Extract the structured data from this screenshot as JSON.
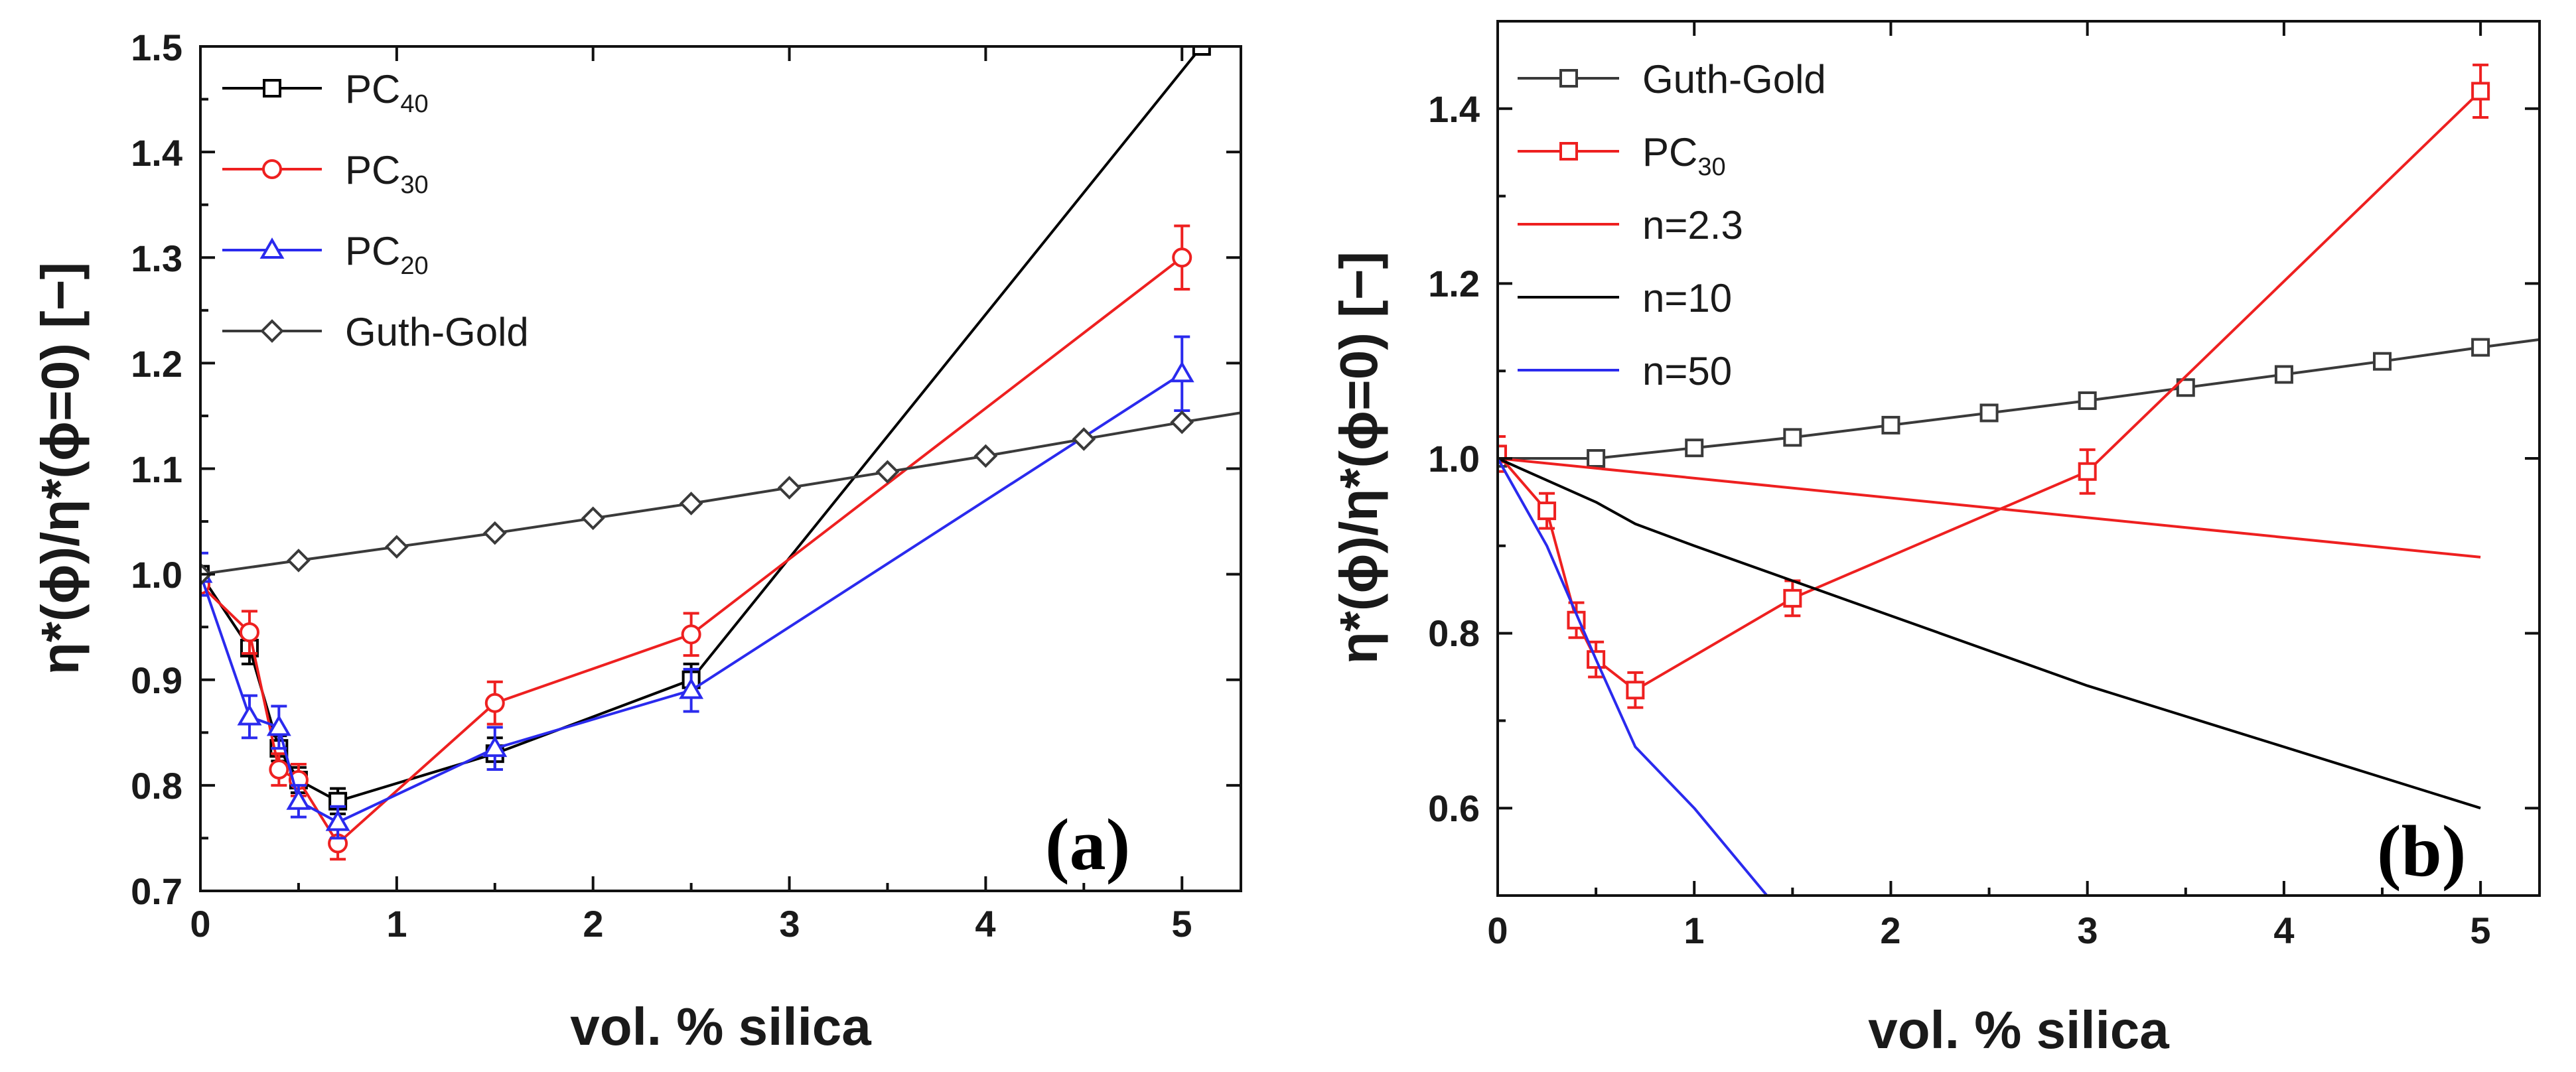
{
  "chart_data": [
    {
      "panel": "(a)",
      "type": "line",
      "xlabel": "vol. % silica",
      "ylabel": "η*(ϕ)/η*(ϕ=0) [−]",
      "xlim": [
        0,
        5.3
      ],
      "ylim": [
        0.7,
        1.5
      ],
      "xticks": [
        "0",
        "1",
        "2",
        "3",
        "4",
        "5"
      ],
      "yticks": [
        "0.7",
        "0.8",
        "0.9",
        "1.0",
        "1.1",
        "1.2",
        "1.3",
        "1.4",
        "1.5"
      ],
      "legend_position": "top-left",
      "series": [
        {
          "name": "PC",
          "sub": "40",
          "color": "#000000",
          "marker": "square",
          "x": [
            0,
            0.25,
            0.4,
            0.5,
            0.7,
            1.5,
            2.5,
            5.1
          ],
          "y": [
            1.0,
            0.93,
            0.835,
            0.805,
            0.785,
            0.83,
            0.9,
            1.5
          ],
          "err": [
            0,
            0.015,
            0.012,
            0.012,
            0.012,
            0.015,
            0.015,
            0
          ]
        },
        {
          "name": "PC",
          "sub": "30",
          "color": "#ee2020",
          "marker": "circle",
          "x": [
            0,
            0.25,
            0.4,
            0.5,
            0.7,
            1.5,
            2.5,
            5
          ],
          "y": [
            0.99,
            0.945,
            0.815,
            0.805,
            0.745,
            0.878,
            0.943,
            1.3
          ],
          "err": [
            0,
            0.02,
            0.015,
            0.015,
            0.015,
            0.02,
            0.02,
            0.03
          ]
        },
        {
          "name": "PC",
          "sub": "20",
          "color": "#2a2aee",
          "marker": "triangle",
          "x": [
            0,
            0.25,
            0.4,
            0.5,
            0.7,
            1.5,
            2.5,
            5
          ],
          "y": [
            1.0,
            0.865,
            0.855,
            0.785,
            0.765,
            0.835,
            0.89,
            1.19
          ],
          "err": [
            0.02,
            0.02,
            0.02,
            0.015,
            0.015,
            0.02,
            0.02,
            0.035
          ]
        },
        {
          "name": "Guth-Gold",
          "sub": "",
          "color": "#3a3a3a",
          "marker": "diamond",
          "x": [
            0,
            0.5,
            1,
            1.5,
            2,
            2.5,
            3,
            3.5,
            4,
            4.5,
            5,
            5.3
          ],
          "y": [
            1.0,
            1.013,
            1.026,
            1.039,
            1.053,
            1.067,
            1.082,
            1.097,
            1.112,
            1.128,
            1.144,
            1.153
          ],
          "marker_x_max": 5.05,
          "err": []
        }
      ]
    },
    {
      "panel": "(b)",
      "type": "line",
      "xlabel": "vol. % silica",
      "ylabel": "η*(ϕ)/η*(ϕ=0) [−]",
      "xlim": [
        0,
        5.3
      ],
      "ylim": [
        0.5,
        1.5
      ],
      "xticks": [
        "0",
        "1",
        "2",
        "3",
        "4",
        "5"
      ],
      "yticks": [
        "0.6",
        "0.8",
        "1.0",
        "1.2",
        "1.4"
      ],
      "legend_position": "top-left",
      "series": [
        {
          "name": "Guth-Gold",
          "sub": "",
          "color": "#3a3a3a",
          "marker": "square",
          "x": [
            0,
            0.5,
            1,
            1.5,
            2,
            2.5,
            3,
            3.5,
            4,
            4.5,
            5,
            5.3
          ],
          "y": [
            1.0,
            1.0,
            1.012,
            1.024,
            1.038,
            1.052,
            1.066,
            1.081,
            1.096,
            1.111,
            1.127,
            1.136
          ],
          "marker_x_max": 5.05,
          "err": []
        },
        {
          "name": "PC",
          "sub": "30",
          "color": "#ee2020",
          "marker": "square",
          "x": [
            0,
            0.25,
            0.4,
            0.5,
            0.7,
            1.5,
            3,
            5
          ],
          "y": [
            1.005,
            0.94,
            0.815,
            0.77,
            0.735,
            0.84,
            0.985,
            1.42
          ],
          "err": [
            0.02,
            0.02,
            0.02,
            0.02,
            0.02,
            0.02,
            0.025,
            0.03
          ]
        },
        {
          "name": "n=2.3",
          "sub": "",
          "color": "#ee2020",
          "marker": "none",
          "x": [
            0,
            5
          ],
          "y": [
            1.0,
            0.887
          ],
          "err": []
        },
        {
          "name": "n=10",
          "sub": "",
          "color": "#000000",
          "marker": "none",
          "x": [
            0,
            0.5,
            0.7,
            1,
            1.5,
            2,
            2.5,
            3,
            4,
            5
          ],
          "y": [
            1.0,
            0.95,
            0.925,
            0.9,
            0.86,
            0.82,
            0.78,
            0.74,
            0.67,
            0.6
          ],
          "err": []
        },
        {
          "name": "n=50",
          "sub": "",
          "color": "#2a2aee",
          "marker": "none",
          "x": [
            0,
            0.25,
            0.5,
            0.7,
            1,
            1.37
          ],
          "y": [
            1.0,
            0.9,
            0.77,
            0.67,
            0.6,
            0.5
          ],
          "err": []
        }
      ]
    }
  ]
}
